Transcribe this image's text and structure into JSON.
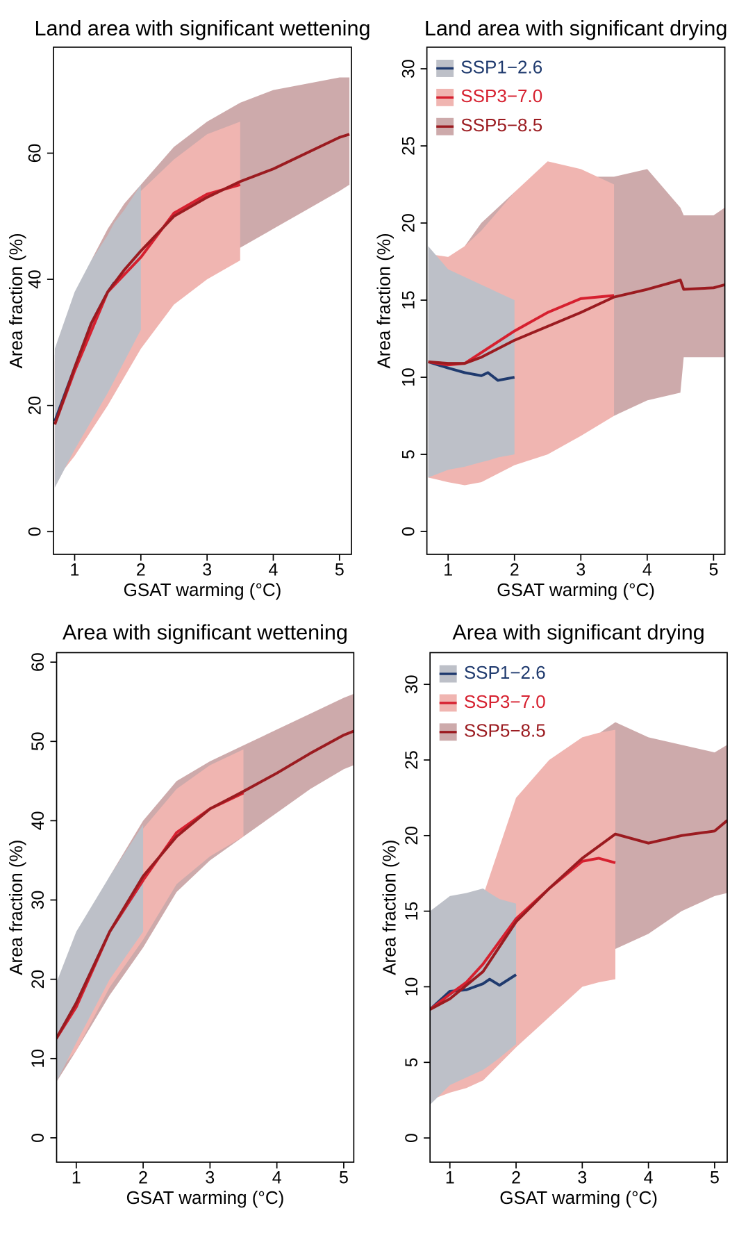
{
  "chart_data": [
    {
      "type": "line",
      "title": "Land area with significant wettening",
      "xlabel": "GSAT warming (°C)",
      "ylabel": "Area fraction (%)",
      "xlim": [
        0.68,
        5.18
      ],
      "ylim": [
        -3.6,
        76.8
      ],
      "xticks": [
        1,
        2,
        3,
        4,
        5
      ],
      "yticks": [
        0,
        20,
        40,
        60
      ],
      "series": [
        {
          "color": "#1f3a6e",
          "band_color": "#bdc0c8",
          "x": [
            0.7,
            1.0,
            1.25,
            1.5,
            1.6,
            1.75,
            2.0
          ],
          "values": [
            17.5,
            26,
            33,
            38,
            39.5,
            null,
            null
          ],
          "lower": [
            7,
            13,
            17.5,
            22,
            24,
            27,
            32
          ],
          "upper": [
            29,
            38,
            43,
            47,
            49,
            51,
            55
          ]
        },
        {
          "color": "#d6202f",
          "band_color": "#f0b5b1",
          "x": [
            0.7,
            1.0,
            1.5,
            2.0,
            2.5,
            3.0,
            3.5
          ],
          "values": [
            17,
            25.5,
            38,
            43.5,
            50.5,
            53.5,
            55
          ],
          "lower": [
            8,
            12,
            20,
            29,
            36,
            40,
            43
          ],
          "upper": [
            27,
            36,
            47,
            54,
            59,
            63,
            65
          ]
        },
        {
          "color": "#9b1b20",
          "band_color": "#cdaaab",
          "x": [
            0.7,
            1.0,
            1.25,
            1.5,
            1.75,
            2.0,
            2.5,
            3.0,
            3.5,
            4.0,
            4.5,
            5.0,
            5.15
          ],
          "values": [
            17,
            26,
            33,
            38,
            41.5,
            44.5,
            50,
            53,
            55.5,
            57.5,
            60,
            62.5,
            63
          ],
          "lower": [
            7,
            13,
            17.5,
            22,
            26.5,
            31,
            37,
            41,
            45,
            48,
            51,
            54,
            55
          ],
          "upper": [
            28,
            37,
            43,
            48,
            52,
            55,
            61,
            65,
            68,
            70,
            71,
            72,
            72
          ]
        }
      ]
    },
    {
      "type": "line",
      "title": "Land area with significant drying",
      "xlabel": "GSAT warming (°C)",
      "ylabel": "Area fraction (%)",
      "xlim": [
        0.68,
        5.17
      ],
      "ylim": [
        -1.48,
        31.4
      ],
      "xticks": [
        1,
        2,
        3,
        4,
        5
      ],
      "yticks": [
        0,
        5,
        10,
        15,
        20,
        25,
        30
      ],
      "legend": "upper left",
      "series": [
        {
          "name": "SSP1−2.6",
          "color": "#1f3a6e",
          "band_color": "#bdc0c8",
          "x": [
            0.7,
            1.0,
            1.25,
            1.5,
            1.6,
            1.75,
            2.0
          ],
          "values": [
            11,
            10.6,
            10.3,
            10.1,
            10.3,
            9.8,
            10
          ],
          "lower": [
            3.5,
            4,
            4.2,
            4.5,
            4.6,
            4.8,
            5
          ],
          "upper": [
            18.5,
            17,
            16.5,
            16,
            15.8,
            15.5,
            15
          ]
        },
        {
          "name": "SSP3−7.0",
          "color": "#d6202f",
          "band_color": "#f0b5b1",
          "x": [
            0.7,
            1.0,
            1.25,
            1.5,
            2.0,
            2.5,
            3.0,
            3.5
          ],
          "values": [
            11,
            10.8,
            10.9,
            11.6,
            13,
            14.2,
            15.1,
            15.3
          ],
          "lower": [
            3.5,
            3.2,
            3.0,
            3.2,
            4.3,
            5,
            6.2,
            7.5
          ],
          "upper": [
            18,
            17.8,
            18.5,
            19.5,
            22,
            24,
            23.5,
            22.5
          ]
        },
        {
          "name": "SSP5−8.5",
          "color": "#9b1b20",
          "band_color": "#cdaaab",
          "x": [
            0.7,
            1.0,
            1.25,
            1.5,
            2.0,
            2.5,
            3.0,
            3.5,
            4.0,
            4.5,
            4.55,
            5.0,
            5.17
          ],
          "values": [
            11,
            10.9,
            10.9,
            11.3,
            12.4,
            13.3,
            14.2,
            15.2,
            15.7,
            16.3,
            15.7,
            15.8,
            16
          ],
          "lower": [
            3.5,
            3.3,
            3.3,
            3.5,
            4.5,
            5.5,
            6.5,
            7.5,
            8.5,
            9,
            11.3,
            11.3,
            11.3
          ],
          "upper": [
            18,
            17.5,
            18.5,
            20,
            22,
            23.5,
            23,
            23,
            23.5,
            21,
            20.5,
            20.5,
            21
          ]
        }
      ]
    },
    {
      "type": "line",
      "title": "Area with significant wettening",
      "xlabel": "GSAT warming (°C)",
      "ylabel": "Area fraction (%)",
      "xlim": [
        0.706,
        5.15
      ],
      "ylim": [
        -3.07,
        61.2
      ],
      "xticks": [
        1,
        2,
        3,
        4,
        5
      ],
      "yticks": [
        0,
        10,
        20,
        30,
        40,
        50,
        60
      ],
      "series": [
        {
          "color": "#1f3a6e",
          "band_color": "#bdc0c8",
          "x": [
            0.7,
            1.0,
            1.5,
            2.0
          ],
          "values": [
            12.5,
            17,
            26,
            32.5
          ],
          "lower": [
            7,
            12,
            20,
            26
          ],
          "upper": [
            19.5,
            26,
            33,
            39.5
          ]
        },
        {
          "color": "#d6202f",
          "band_color": "#f0b5b1",
          "x": [
            0.7,
            1.0,
            1.5,
            2.0,
            2.5,
            3.0,
            3.5
          ],
          "values": [
            12.5,
            16.5,
            26,
            32.5,
            38.5,
            41.5,
            43.5
          ],
          "lower": [
            8,
            11,
            19,
            25,
            32,
            35.5,
            38
          ],
          "upper": [
            17,
            24,
            33,
            39,
            44,
            47,
            49
          ]
        },
        {
          "color": "#9b1b20",
          "band_color": "#cdaaab",
          "x": [
            0.7,
            1.0,
            1.5,
            2.0,
            2.5,
            3.0,
            3.5,
            4.0,
            4.5,
            5.0,
            5.15
          ],
          "values": [
            12.5,
            17,
            26,
            33,
            38,
            41.5,
            43.7,
            46,
            48.5,
            50.8,
            51.3
          ],
          "lower": [
            7,
            11,
            18,
            24,
            31,
            35,
            38,
            41,
            44,
            46.5,
            47
          ],
          "upper": [
            19,
            25,
            33,
            40,
            45,
            47.5,
            49.5,
            51.5,
            53.5,
            55.5,
            56
          ]
        }
      ]
    },
    {
      "type": "line",
      "title": "Area with significant drying",
      "xlabel": "GSAT warming (°C)",
      "ylabel": "Area fraction (%)",
      "xlim": [
        0.7,
        5.19
      ],
      "ylim": [
        -1.6,
        32.1
      ],
      "xticks": [
        1,
        2,
        3,
        4,
        5
      ],
      "yticks": [
        0,
        5,
        10,
        15,
        20,
        25,
        30
      ],
      "legend": "upper left",
      "series": [
        {
          "name": "SSP1−2.6",
          "color": "#1f3a6e",
          "band_color": "#bdc0c8",
          "x": [
            0.7,
            1.0,
            1.25,
            1.5,
            1.6,
            1.75,
            2.0
          ],
          "values": [
            8.5,
            9.7,
            9.8,
            10.2,
            10.5,
            10.1,
            10.8
          ],
          "lower": [
            2.2,
            3.5,
            4,
            4.5,
            4.8,
            5.3,
            6.2
          ],
          "upper": [
            15,
            16,
            16.2,
            16.5,
            16.2,
            15.8,
            15.5
          ]
        },
        {
          "name": "SSP3−7.0",
          "color": "#d6202f",
          "band_color": "#f0b5b1",
          "x": [
            0.7,
            1.0,
            1.25,
            1.5,
            2.0,
            2.5,
            3.0,
            3.25,
            3.5
          ],
          "values": [
            8.5,
            9.5,
            10.3,
            11.5,
            14.5,
            16.5,
            18.3,
            18.5,
            18.2
          ],
          "lower": [
            2.5,
            3,
            3.3,
            3.8,
            6,
            8,
            10,
            10.3,
            10.5
          ],
          "upper": [
            15,
            15.5,
            15.7,
            16,
            22.5,
            25,
            26.5,
            26.8,
            27
          ]
        },
        {
          "name": "SSP5−8.5",
          "color": "#9b1b20",
          "band_color": "#cdaaab",
          "x": [
            0.7,
            1.0,
            1.5,
            2.0,
            2.5,
            3.0,
            3.5,
            4.0,
            4.5,
            5.0,
            5.19
          ],
          "values": [
            8.5,
            9.2,
            11,
            14.3,
            16.5,
            18.5,
            20.1,
            19.5,
            20,
            20.3,
            21
          ],
          "lower": [
            2.5,
            3.2,
            3.8,
            6,
            8,
            10,
            12.5,
            13.5,
            15,
            16,
            16.2
          ],
          "upper": [
            15,
            15.5,
            16,
            22,
            24.5,
            26,
            27.5,
            26.5,
            26,
            25.5,
            26
          ]
        }
      ]
    }
  ]
}
